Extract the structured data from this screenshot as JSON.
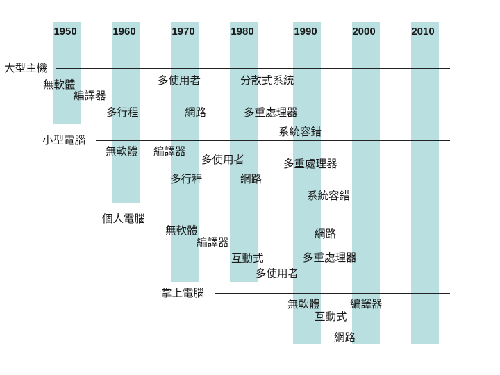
{
  "years": [
    "1950",
    "1960",
    "1970",
    "1980",
    "1990",
    "2000",
    "2010"
  ],
  "colors": {
    "band": "#b9dfe0",
    "line": "#222222",
    "text": "#1a1a1a"
  },
  "sections": [
    {
      "title": "大型主機",
      "features": [
        "無軟體",
        "編譯器",
        "多行程",
        "多使用者",
        "網路",
        "分散式系統",
        "多重處理器",
        "系統容錯"
      ]
    },
    {
      "title": "小型電腦",
      "features": [
        "無軟體",
        "編譯器",
        "多行程",
        "多使用者",
        "網路",
        "多重處理器",
        "系統容錯"
      ]
    },
    {
      "title": "個人電腦",
      "features": [
        "無軟體",
        "編譯器",
        "互動式",
        "多使用者",
        "網路",
        "多重處理器"
      ]
    },
    {
      "title": "掌上電腦",
      "features": [
        "無軟體",
        "編譯器",
        "互動式",
        "網路"
      ]
    }
  ]
}
